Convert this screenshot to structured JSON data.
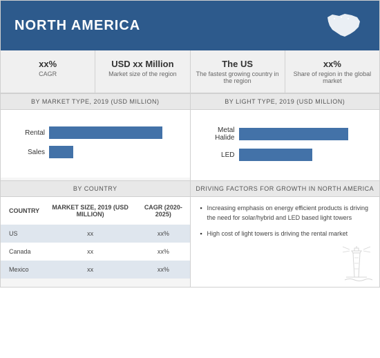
{
  "header": {
    "title": "NORTH AMERICA"
  },
  "stats": [
    {
      "main": "xx%",
      "sub": "CAGR"
    },
    {
      "main": "USD xx Million",
      "sub": "Market size of the region"
    },
    {
      "main": "The US",
      "sub": "The fastest growing country in the region"
    },
    {
      "main": "xx%",
      "sub": "Share of region in the global market"
    }
  ],
  "chart_market": {
    "title": "BY MARKET TYPE, 2019 (USD MILLION)",
    "type": "bar",
    "bars": [
      {
        "label": "Rental",
        "value": 85,
        "color": "#4372a8"
      },
      {
        "label": "Sales",
        "value": 18,
        "color": "#4372a8"
      }
    ],
    "xlim": [
      0,
      100
    ]
  },
  "chart_light": {
    "title": "BY LIGHT TYPE, 2019 (USD MILLION)",
    "type": "bar",
    "bars": [
      {
        "label": "Metal Halide",
        "value": 82,
        "color": "#4372a8"
      },
      {
        "label": "LED",
        "value": 55,
        "color": "#4372a8"
      }
    ],
    "xlim": [
      0,
      100
    ]
  },
  "country_table": {
    "title": "BY COUNTRY",
    "headers": [
      "COUNTRY",
      "MARKET SIZE, 2019 (USD MILLION)",
      "CAGR (2020-2025)"
    ],
    "rows": [
      {
        "cells": [
          "US",
          "xx",
          "xx%"
        ],
        "alt": true
      },
      {
        "cells": [
          "Canada",
          "xx",
          "xx%"
        ],
        "alt": false
      },
      {
        "cells": [
          "Mexico",
          "xx",
          "xx%"
        ],
        "alt": true
      }
    ]
  },
  "factors": {
    "title": "DRIVING FACTORS FOR GROWTH IN NORTH AMERICA",
    "items": [
      "Increasing emphasis on energy efficient products is driving the need for solar/hybrid and LED based light towers",
      "High cost of light towers is driving the rental market"
    ]
  },
  "colors": {
    "header_bg": "#2d5a8c",
    "bar_fill": "#4372a8",
    "panel_bg": "#f5f5f5",
    "alt_row": "#dfe6ee"
  }
}
